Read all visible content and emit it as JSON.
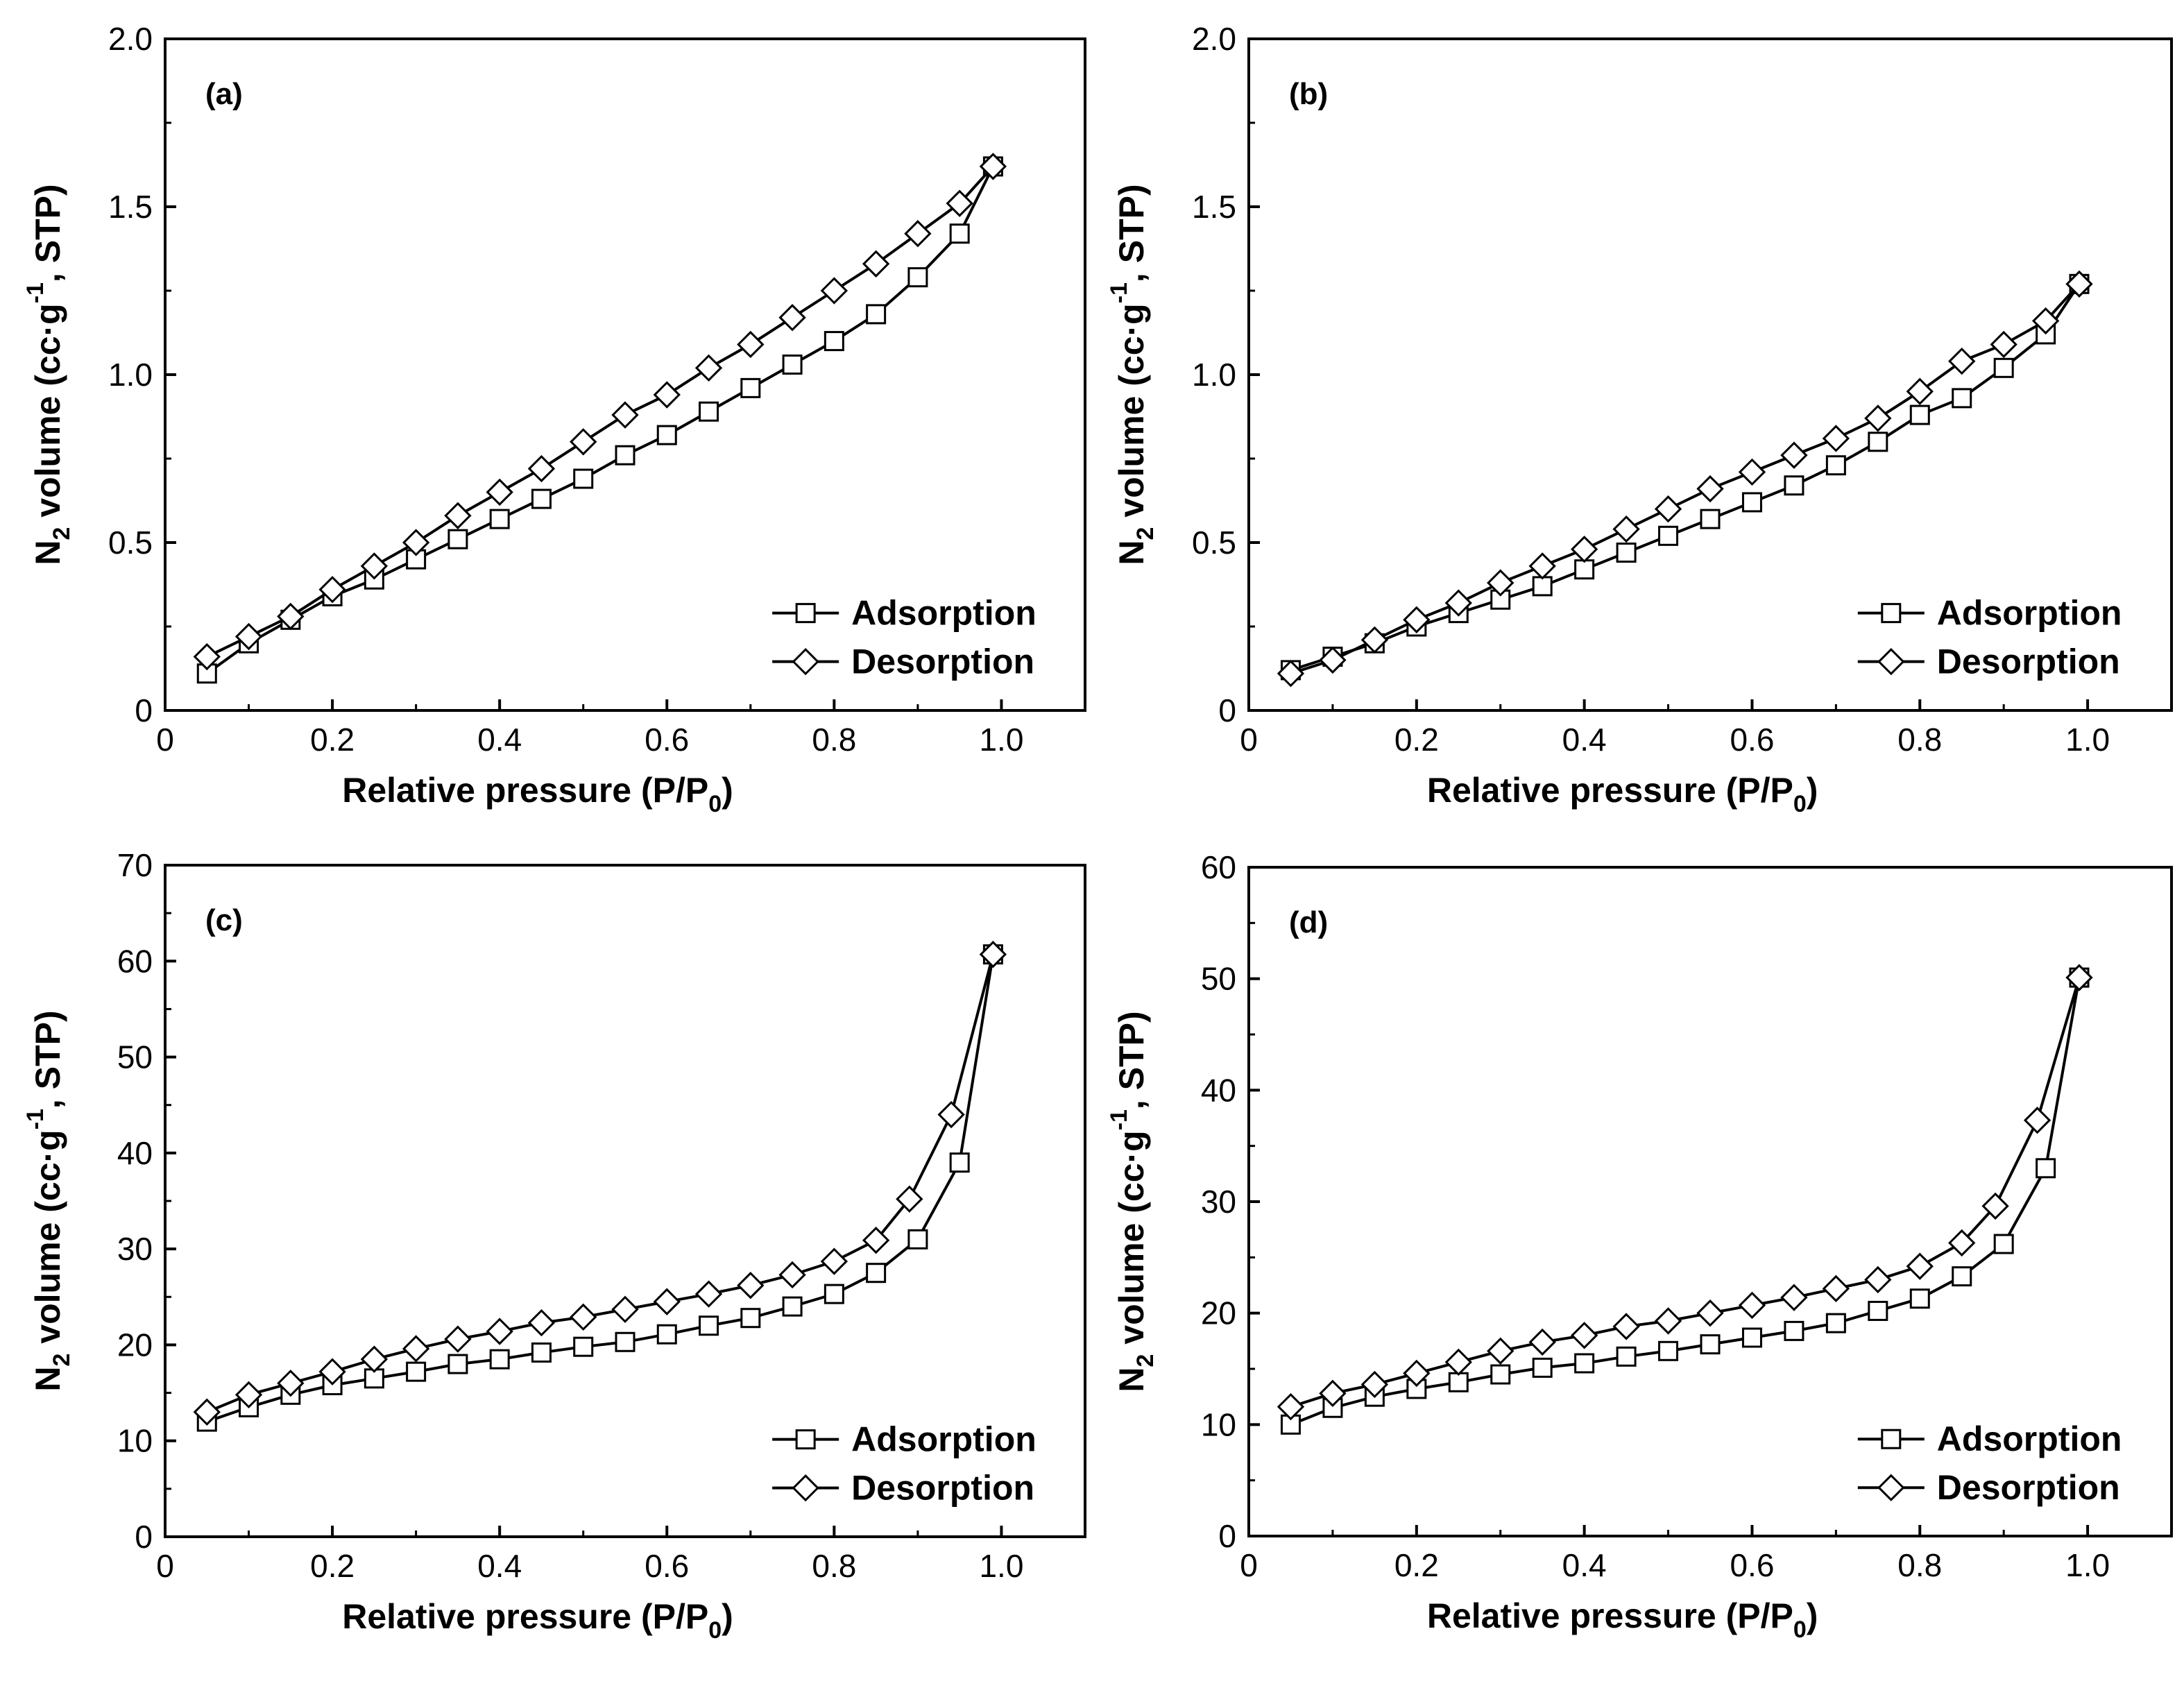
{
  "chart_data": [
    {
      "type": "line",
      "panel_label": "(a)",
      "xlabel": "Relative pressure (P/P",
      "xlabel_sub": "0",
      "xlabel_end": ")",
      "ylabel_prefix": "N",
      "ylabel_prefix_sub": "2",
      "ylabel_main": " volume (cc·g",
      "ylabel_sup": "-1",
      "ylabel_end": ", STP)",
      "xlim": [
        0,
        1.1
      ],
      "ylim": [
        0,
        2.0
      ],
      "xticks": [
        0,
        0.2,
        0.4,
        0.6,
        0.8,
        1.0
      ],
      "xtick_labels": [
        "0",
        "0.2",
        "0.4",
        "0.6",
        "0.8",
        "1.0"
      ],
      "yticks": [
        0,
        0.5,
        1.0,
        1.5,
        2.0
      ],
      "ytick_labels": [
        "0",
        "0.5",
        "1.0",
        "1.5",
        "2.0"
      ],
      "legend": "bottom-right",
      "series": [
        {
          "name": "Adsorption",
          "marker": "square",
          "x": [
            0.05,
            0.1,
            0.15,
            0.2,
            0.25,
            0.3,
            0.35,
            0.4,
            0.45,
            0.5,
            0.55,
            0.6,
            0.65,
            0.7,
            0.75,
            0.8,
            0.85,
            0.9,
            0.95,
            0.99
          ],
          "y": [
            0.11,
            0.2,
            0.27,
            0.34,
            0.39,
            0.45,
            0.51,
            0.57,
            0.63,
            0.69,
            0.76,
            0.82,
            0.89,
            0.96,
            1.03,
            1.1,
            1.18,
            1.29,
            1.42,
            1.62
          ]
        },
        {
          "name": "Desorption",
          "marker": "diamond",
          "x": [
            0.05,
            0.1,
            0.15,
            0.2,
            0.25,
            0.3,
            0.35,
            0.4,
            0.45,
            0.5,
            0.55,
            0.6,
            0.65,
            0.7,
            0.75,
            0.8,
            0.85,
            0.9,
            0.95,
            0.99
          ],
          "y": [
            0.16,
            0.22,
            0.28,
            0.36,
            0.43,
            0.5,
            0.58,
            0.65,
            0.72,
            0.8,
            0.88,
            0.94,
            1.02,
            1.09,
            1.17,
            1.25,
            1.33,
            1.42,
            1.51,
            1.62
          ]
        }
      ]
    },
    {
      "type": "line",
      "panel_label": "(b)",
      "xlabel": "Relative pressure (P/P",
      "xlabel_sub": "0",
      "xlabel_end": ")",
      "ylabel_prefix": "N",
      "ylabel_prefix_sub": "2",
      "ylabel_main": " volume (cc·g",
      "ylabel_sup": "-1",
      "ylabel_end": ", STP)",
      "xlim": [
        0,
        1.1
      ],
      "ylim": [
        0,
        2.0
      ],
      "xticks": [
        0,
        0.2,
        0.4,
        0.6,
        0.8,
        1.0
      ],
      "xtick_labels": [
        "0",
        "0.2",
        "0.4",
        "0.6",
        "0.8",
        "1.0"
      ],
      "yticks": [
        0,
        0.5,
        1.0,
        1.5,
        2.0
      ],
      "ytick_labels": [
        "0",
        "0.5",
        "1.0",
        "1.5",
        "2.0"
      ],
      "legend": "bottom-right",
      "series": [
        {
          "name": "Adsorption",
          "marker": "square",
          "x": [
            0.05,
            0.1,
            0.15,
            0.2,
            0.25,
            0.3,
            0.35,
            0.4,
            0.45,
            0.5,
            0.55,
            0.6,
            0.65,
            0.7,
            0.75,
            0.8,
            0.85,
            0.9,
            0.95,
            0.99
          ],
          "y": [
            0.12,
            0.16,
            0.2,
            0.25,
            0.29,
            0.33,
            0.37,
            0.42,
            0.47,
            0.52,
            0.57,
            0.62,
            0.67,
            0.73,
            0.8,
            0.88,
            0.93,
            1.02,
            1.12,
            1.27
          ]
        },
        {
          "name": "Desorption",
          "marker": "diamond",
          "x": [
            0.05,
            0.1,
            0.15,
            0.2,
            0.25,
            0.3,
            0.35,
            0.4,
            0.45,
            0.5,
            0.55,
            0.6,
            0.65,
            0.7,
            0.75,
            0.8,
            0.85,
            0.9,
            0.95,
            0.99
          ],
          "y": [
            0.11,
            0.15,
            0.21,
            0.27,
            0.32,
            0.38,
            0.43,
            0.48,
            0.54,
            0.6,
            0.66,
            0.71,
            0.76,
            0.81,
            0.87,
            0.95,
            1.04,
            1.09,
            1.16,
            1.27
          ]
        }
      ]
    },
    {
      "type": "line",
      "panel_label": "(c)",
      "xlabel": "Relative pressure (P/P",
      "xlabel_sub": "0",
      "xlabel_end": ")",
      "ylabel_prefix": "N",
      "ylabel_prefix_sub": "2",
      "ylabel_main": " volume (cc·g",
      "ylabel_sup": "-1",
      "ylabel_end": ", STP)",
      "xlim": [
        0,
        1.1
      ],
      "ylim": [
        0,
        70
      ],
      "xticks": [
        0,
        0.2,
        0.4,
        0.6,
        0.8,
        1.0
      ],
      "xtick_labels": [
        "0",
        "0.2",
        "0.4",
        "0.6",
        "0.8",
        "1.0"
      ],
      "yticks": [
        0,
        10,
        20,
        30,
        40,
        50,
        60,
        70
      ],
      "ytick_labels": [
        "0",
        "10",
        "20",
        "30",
        "40",
        "50",
        "60",
        "70"
      ],
      "legend": "bottom-right",
      "series": [
        {
          "name": "Adsorption",
          "marker": "square",
          "x": [
            0.05,
            0.1,
            0.15,
            0.2,
            0.25,
            0.3,
            0.35,
            0.4,
            0.45,
            0.5,
            0.55,
            0.6,
            0.65,
            0.7,
            0.75,
            0.8,
            0.85,
            0.9,
            0.95,
            0.99
          ],
          "y": [
            12.0,
            13.5,
            14.8,
            15.8,
            16.5,
            17.2,
            18.0,
            18.5,
            19.2,
            19.8,
            20.3,
            21.1,
            22.0,
            22.8,
            24.0,
            25.3,
            27.5,
            31.0,
            39.0,
            60.7
          ]
        },
        {
          "name": "Desorption",
          "marker": "diamond",
          "x": [
            0.05,
            0.1,
            0.15,
            0.2,
            0.25,
            0.3,
            0.35,
            0.4,
            0.45,
            0.5,
            0.55,
            0.6,
            0.65,
            0.7,
            0.75,
            0.8,
            0.85,
            0.89,
            0.94,
            0.99
          ],
          "y": [
            13.0,
            14.8,
            16.0,
            17.2,
            18.5,
            19.6,
            20.6,
            21.4,
            22.3,
            22.9,
            23.7,
            24.5,
            25.3,
            26.2,
            27.3,
            28.7,
            30.9,
            35.2,
            44.0,
            60.7
          ]
        }
      ]
    },
    {
      "type": "line",
      "panel_label": "(d)",
      "xlabel": "Relative pressure (P/P",
      "xlabel_sub": "0",
      "xlabel_end": ")",
      "ylabel_prefix": "N",
      "ylabel_prefix_sub": "2",
      "ylabel_main": " volume (cc·g",
      "ylabel_sup": "-1",
      "ylabel_end": ", STP)",
      "xlim": [
        0,
        1.1
      ],
      "ylim": [
        0,
        60
      ],
      "xticks": [
        0,
        0.2,
        0.4,
        0.6,
        0.8,
        1.0
      ],
      "xtick_labels": [
        "0",
        "0.2",
        "0.4",
        "0.6",
        "0.8",
        "1.0"
      ],
      "yticks": [
        0,
        10,
        20,
        30,
        40,
        50,
        60
      ],
      "ytick_labels": [
        "0",
        "10",
        "20",
        "30",
        "40",
        "50",
        "60"
      ],
      "legend": "bottom-right",
      "series": [
        {
          "name": "Adsorption",
          "marker": "square",
          "x": [
            0.05,
            0.1,
            0.15,
            0.2,
            0.25,
            0.3,
            0.35,
            0.4,
            0.45,
            0.5,
            0.55,
            0.6,
            0.65,
            0.7,
            0.75,
            0.8,
            0.85,
            0.9,
            0.95,
            0.99
          ],
          "y": [
            10.0,
            11.5,
            12.5,
            13.2,
            13.8,
            14.5,
            15.1,
            15.5,
            16.1,
            16.6,
            17.2,
            17.8,
            18.4,
            19.1,
            20.2,
            21.3,
            23.3,
            26.2,
            33.0,
            50.1
          ]
        },
        {
          "name": "Desorption",
          "marker": "diamond",
          "x": [
            0.05,
            0.1,
            0.15,
            0.2,
            0.25,
            0.3,
            0.35,
            0.4,
            0.45,
            0.5,
            0.55,
            0.6,
            0.65,
            0.7,
            0.75,
            0.8,
            0.85,
            0.89,
            0.94,
            0.99
          ],
          "y": [
            11.6,
            12.8,
            13.6,
            14.6,
            15.6,
            16.6,
            17.4,
            18.0,
            18.8,
            19.3,
            20.0,
            20.7,
            21.4,
            22.2,
            23.0,
            24.2,
            26.3,
            29.6,
            37.3,
            50.1
          ]
        }
      ]
    }
  ]
}
